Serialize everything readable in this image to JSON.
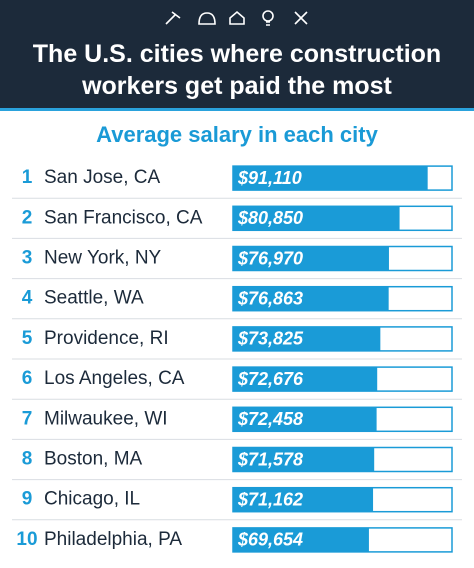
{
  "chart_data": {
    "type": "bar",
    "orientation": "horizontal",
    "title": "The U.S. cities where construction workers get paid the most",
    "subtitle": "Average salary in each city",
    "ranks": [
      1,
      2,
      3,
      4,
      5,
      6,
      7,
      8,
      9,
      10
    ],
    "categories": [
      "San Jose, CA",
      "San Francisco, CA",
      "New York, NY",
      "Seattle, WA",
      "Providence, RI",
      "Los Angeles, CA",
      "Milwaukee, WI",
      "Boston, MA",
      "Chicago, IL",
      "Philadelphia, PA"
    ],
    "values": [
      91110,
      80850,
      76970,
      76863,
      73825,
      72676,
      72458,
      71578,
      71162,
      69654
    ],
    "value_labels": [
      "$91,110",
      "$80,850",
      "$76,970",
      "$76,863",
      "$73,825",
      "$72,676",
      "$72,458",
      "$71,578",
      "$71,162",
      "$69,654"
    ],
    "xlim": [
      20000,
      100000
    ],
    "color": "#1a9bd7"
  }
}
